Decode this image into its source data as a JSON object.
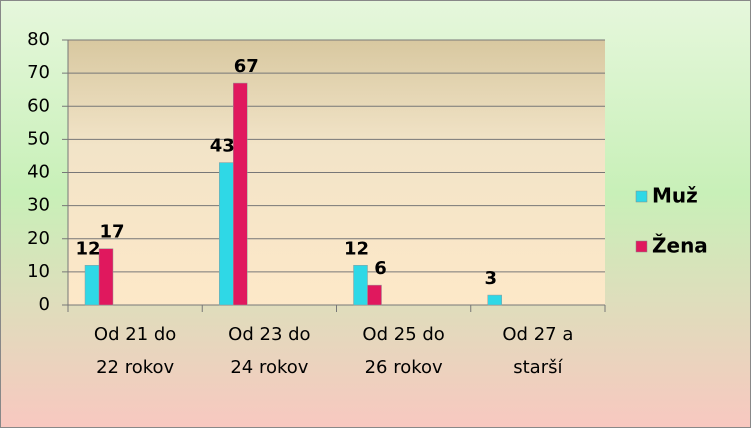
{
  "chart_data": {
    "type": "bar",
    "categories": [
      "Od 21 do\n22 rokov",
      "Od 23 do\n24 rokov",
      "Od 25 do\n26 rokov",
      "Od 27 a\nstarší"
    ],
    "series": [
      {
        "name": "Muž",
        "color": "#2fd8e6",
        "values": [
          12,
          43,
          12,
          3
        ]
      },
      {
        "name": "Žena",
        "color": "#e0185e",
        "values": [
          17,
          67,
          6,
          null
        ]
      }
    ],
    "ylim": [
      0,
      80
    ],
    "yticks": [
      0,
      10,
      20,
      30,
      40,
      50,
      60,
      70,
      80
    ],
    "grid": true,
    "legend": "right"
  }
}
